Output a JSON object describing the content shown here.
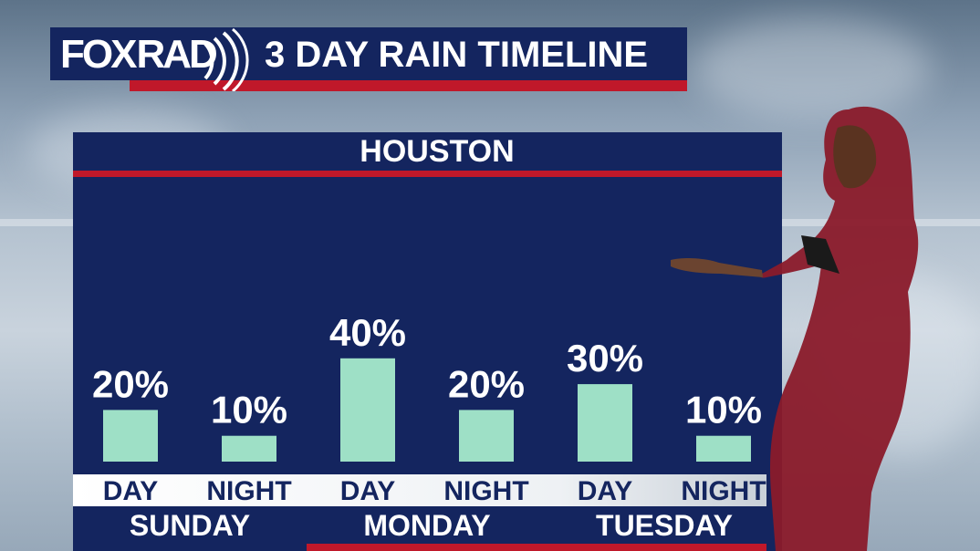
{
  "brand": {
    "logo_left": "FOX",
    "logo_right": "RAD"
  },
  "header": {
    "title": "3 DAY RAIN TIMELINE"
  },
  "panel": {
    "city": "HOUSTON"
  },
  "colors": {
    "navy": "#14255f",
    "red": "#c0182a",
    "bar": "#9ee0c6"
  },
  "chart_data": {
    "type": "bar",
    "title": "HOUSTON",
    "categories": [
      "DAY",
      "NIGHT",
      "DAY",
      "NIGHT",
      "DAY",
      "NIGHT"
    ],
    "groups": [
      "SUNDAY",
      "MONDAY",
      "TUESDAY"
    ],
    "values": [
      20,
      10,
      40,
      20,
      30,
      10
    ],
    "labels": [
      "20%",
      "10%",
      "40%",
      "20%",
      "30%",
      "10%"
    ],
    "ylim": [
      0,
      100
    ],
    "grid": false
  }
}
